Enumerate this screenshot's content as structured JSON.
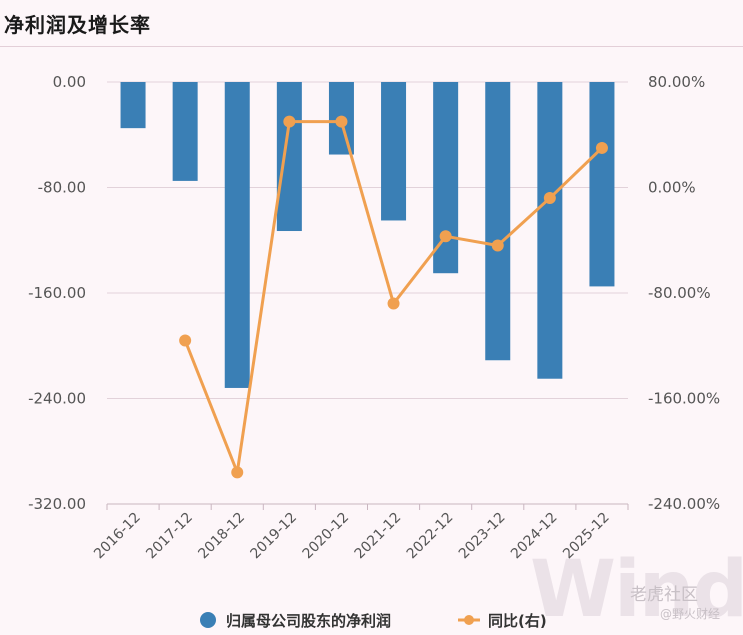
{
  "title": "净利润及增长率",
  "watermark": {
    "logo_text": "Wind",
    "brand": "老虎社区",
    "handle": "@野火财经"
  },
  "chart_data": {
    "type": "bar+line",
    "categories": [
      "2016-12",
      "2017-12",
      "2018-12",
      "2019-12",
      "2020-12",
      "2021-12",
      "2022-12",
      "2023-12",
      "2024-12",
      "2025-12"
    ],
    "series": [
      {
        "name": "归属母公司股东的净利润",
        "type": "bar",
        "axis": "left",
        "color": "#3a7fb5",
        "values": [
          -35,
          -75,
          -232,
          -113,
          -55,
          -105,
          -145,
          -211,
          -225,
          -155
        ]
      },
      {
        "name": "同比(右)",
        "type": "line",
        "axis": "right",
        "color": "#f0a050",
        "values": [
          null,
          -116,
          -216,
          50,
          50,
          -88,
          -37,
          -44,
          -8,
          30
        ]
      }
    ],
    "left_axis": {
      "ticks": [
        "0.00",
        "-80.00",
        "-160.00",
        "-240.00",
        "-320.00"
      ],
      "tick_values": [
        0,
        -80,
        -160,
        -240,
        -320
      ],
      "range": [
        -320,
        0
      ]
    },
    "right_axis": {
      "ticks": [
        "80.00%",
        "0.00%",
        "-80.00%",
        "-160.00%",
        "-240.00%"
      ],
      "tick_values": [
        80,
        0,
        -80,
        -160,
        -240
      ],
      "range": [
        -240,
        80
      ]
    },
    "grid": true,
    "legend": "bottom"
  }
}
